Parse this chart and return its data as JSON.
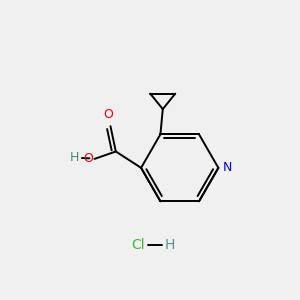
{
  "background_color": "#f0f0f0",
  "bond_color": "#000000",
  "figsize": [
    3.0,
    3.0
  ],
  "dpi": 100,
  "atoms": {
    "N": {
      "color": "#0000ee"
    },
    "O": {
      "color": "#ee0000"
    },
    "H_oh": {
      "color": "#4a8878"
    },
    "H_hcl": {
      "color": "#5a9090"
    },
    "Cl": {
      "color": "#3cb834"
    },
    "lw": 1.4
  }
}
